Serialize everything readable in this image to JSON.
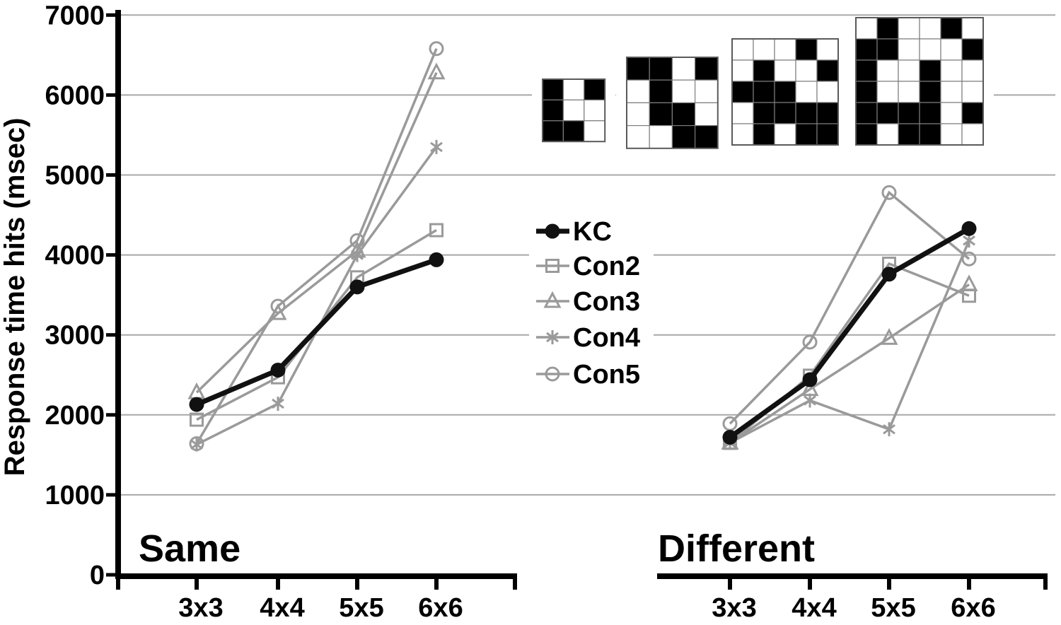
{
  "figure": {
    "background": "#ffffff"
  },
  "chart_data": {
    "type": "line",
    "title": "",
    "ylabel": "Response time hits (msec)",
    "xlabel": "",
    "ylim": [
      0,
      7000
    ],
    "yticks": [
      0,
      1000,
      2000,
      3000,
      4000,
      5000,
      6000,
      7000
    ],
    "categories": [
      "3x3",
      "4x4",
      "5x5",
      "6x6"
    ],
    "grid": "horizontal",
    "legend_position": "center-between-panels",
    "colors": {
      "kc": "#111111",
      "control": "#9a9a9a",
      "gridline": "#a8a8a8",
      "axis": "#000000",
      "text": "#000000"
    },
    "panels": [
      {
        "label": "Same",
        "series": [
          {
            "name": "KC",
            "marker": "circle-filled",
            "color": "#111111",
            "width": 7,
            "values": [
              2130,
              2560,
              3600,
              3940
            ]
          },
          {
            "name": "Con2",
            "marker": "square-open",
            "color": "#9a9a9a",
            "width": 3.5,
            "values": [
              1940,
              2470,
              3720,
              4310
            ]
          },
          {
            "name": "Con3",
            "marker": "triangle-open",
            "color": "#9a9a9a",
            "width": 3.5,
            "values": [
              2280,
              3270,
              4050,
              6280
            ]
          },
          {
            "name": "Con4",
            "marker": "asterisk",
            "color": "#9a9a9a",
            "width": 3.5,
            "values": [
              1630,
              2140,
              4000,
              5350
            ]
          },
          {
            "name": "Con5",
            "marker": "circle-open",
            "color": "#9a9a9a",
            "width": 3.5,
            "values": [
              1640,
              3360,
              4180,
              6580
            ]
          }
        ]
      },
      {
        "label": "Different",
        "series": [
          {
            "name": "KC",
            "marker": "circle-filled",
            "color": "#111111",
            "width": 7,
            "values": [
              1720,
              2440,
              3760,
              4330
            ]
          },
          {
            "name": "Con2",
            "marker": "square-open",
            "color": "#9a9a9a",
            "width": 3.5,
            "values": [
              1650,
              2490,
              3890,
              3490
            ]
          },
          {
            "name": "Con3",
            "marker": "triangle-open",
            "color": "#9a9a9a",
            "width": 3.5,
            "values": [
              1650,
              2320,
              2960,
              3630
            ]
          },
          {
            "name": "Con4",
            "marker": "asterisk",
            "color": "#9a9a9a",
            "width": 3.5,
            "values": [
              1650,
              2180,
              1820,
              4180
            ]
          },
          {
            "name": "Con5",
            "marker": "circle-open",
            "color": "#9a9a9a",
            "width": 3.5,
            "values": [
              1890,
              2910,
              4780,
              3950
            ]
          }
        ]
      }
    ],
    "legend": {
      "entries": [
        {
          "name": "KC",
          "marker": "circle-filled",
          "color": "#111111"
        },
        {
          "name": "Con2",
          "marker": "square-open",
          "color": "#9a9a9a"
        },
        {
          "name": "Con3",
          "marker": "triangle-open",
          "color": "#9a9a9a"
        },
        {
          "name": "Con4",
          "marker": "asterisk",
          "color": "#9a9a9a"
        },
        {
          "name": "Con5",
          "marker": "circle-open",
          "color": "#9a9a9a"
        }
      ]
    },
    "stimuli": [
      {
        "name": "3x3-checkerboard",
        "rows": [
          "101",
          "100",
          "110"
        ]
      },
      {
        "name": "4x4-checkerboard",
        "rows": [
          "1101",
          "0100",
          "0110",
          "0011"
        ]
      },
      {
        "name": "5x5-checkerboard",
        "rows": [
          "00010",
          "01001",
          "11100",
          "01111",
          "01011"
        ]
      },
      {
        "name": "6x6-checkerboard",
        "rows": [
          "010010",
          "110001",
          "100100",
          "100100",
          "111101",
          "101100"
        ]
      }
    ]
  }
}
